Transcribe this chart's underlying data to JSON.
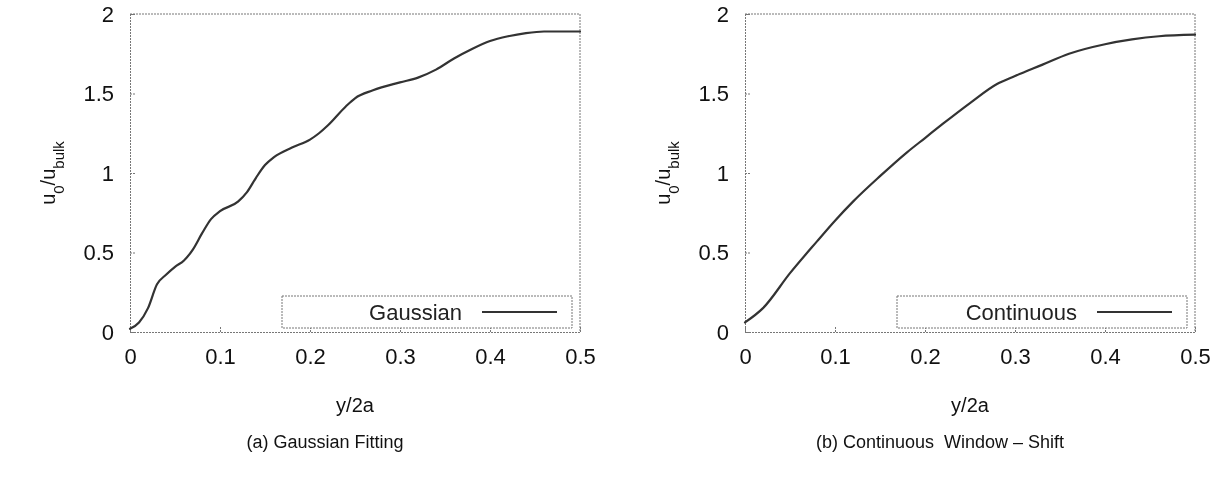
{
  "chart_data": [
    {
      "type": "line",
      "title": "(a) Gaussian Fitting",
      "xlabel": "y/2a",
      "ylabel": "u$_{0}$/u$_{bulk}$",
      "xlim": [
        0,
        0.5
      ],
      "ylim": [
        0,
        2
      ],
      "xticks": [
        0,
        0.1,
        0.2,
        0.3,
        0.4,
        0.5
      ],
      "yticks": [
        0,
        0.5,
        1,
        1.5,
        2
      ],
      "legend": "bottom right",
      "grid": false,
      "series": [
        {
          "name": "Gaussian",
          "color": "#333333",
          "x": [
            0,
            0.01,
            0.02,
            0.03,
            0.04,
            0.05,
            0.06,
            0.07,
            0.08,
            0.09,
            0.1,
            0.12,
            0.13,
            0.14,
            0.15,
            0.16,
            0.18,
            0.2,
            0.21,
            0.22,
            0.24,
            0.25,
            0.27,
            0.3,
            0.32,
            0.34,
            0.36,
            0.38,
            0.4,
            0.42,
            0.44,
            0.46,
            0.5
          ],
          "values": [
            0.02,
            0.06,
            0.15,
            0.3,
            0.36,
            0.41,
            0.45,
            0.52,
            0.62,
            0.71,
            0.76,
            0.82,
            0.88,
            0.97,
            1.05,
            1.1,
            1.16,
            1.21,
            1.25,
            1.3,
            1.42,
            1.47,
            1.52,
            1.57,
            1.6,
            1.65,
            1.72,
            1.78,
            1.83,
            1.86,
            1.88,
            1.89,
            1.89
          ]
        }
      ]
    },
    {
      "type": "line",
      "title": "(b) Continuous  Window – Shift",
      "xlabel": "y/2a",
      "ylabel": "u$_{0}$/u$_{bulk}$",
      "xlim": [
        0,
        0.5
      ],
      "ylim": [
        0,
        2
      ],
      "xticks": [
        0,
        0.1,
        0.2,
        0.3,
        0.4,
        0.5
      ],
      "yticks": [
        0,
        0.5,
        1,
        1.5,
        2
      ],
      "legend": "bottom right",
      "grid": false,
      "series": [
        {
          "name": "Continuous",
          "color": "#333333",
          "x": [
            0,
            0.02,
            0.05,
            0.08,
            0.1,
            0.12,
            0.15,
            0.18,
            0.2,
            0.22,
            0.25,
            0.28,
            0.3,
            0.33,
            0.36,
            0.4,
            0.43,
            0.46,
            0.5
          ],
          "values": [
            0.06,
            0.15,
            0.37,
            0.57,
            0.7,
            0.82,
            0.98,
            1.13,
            1.22,
            1.31,
            1.44,
            1.56,
            1.61,
            1.68,
            1.75,
            1.81,
            1.84,
            1.86,
            1.87
          ]
        }
      ]
    }
  ]
}
